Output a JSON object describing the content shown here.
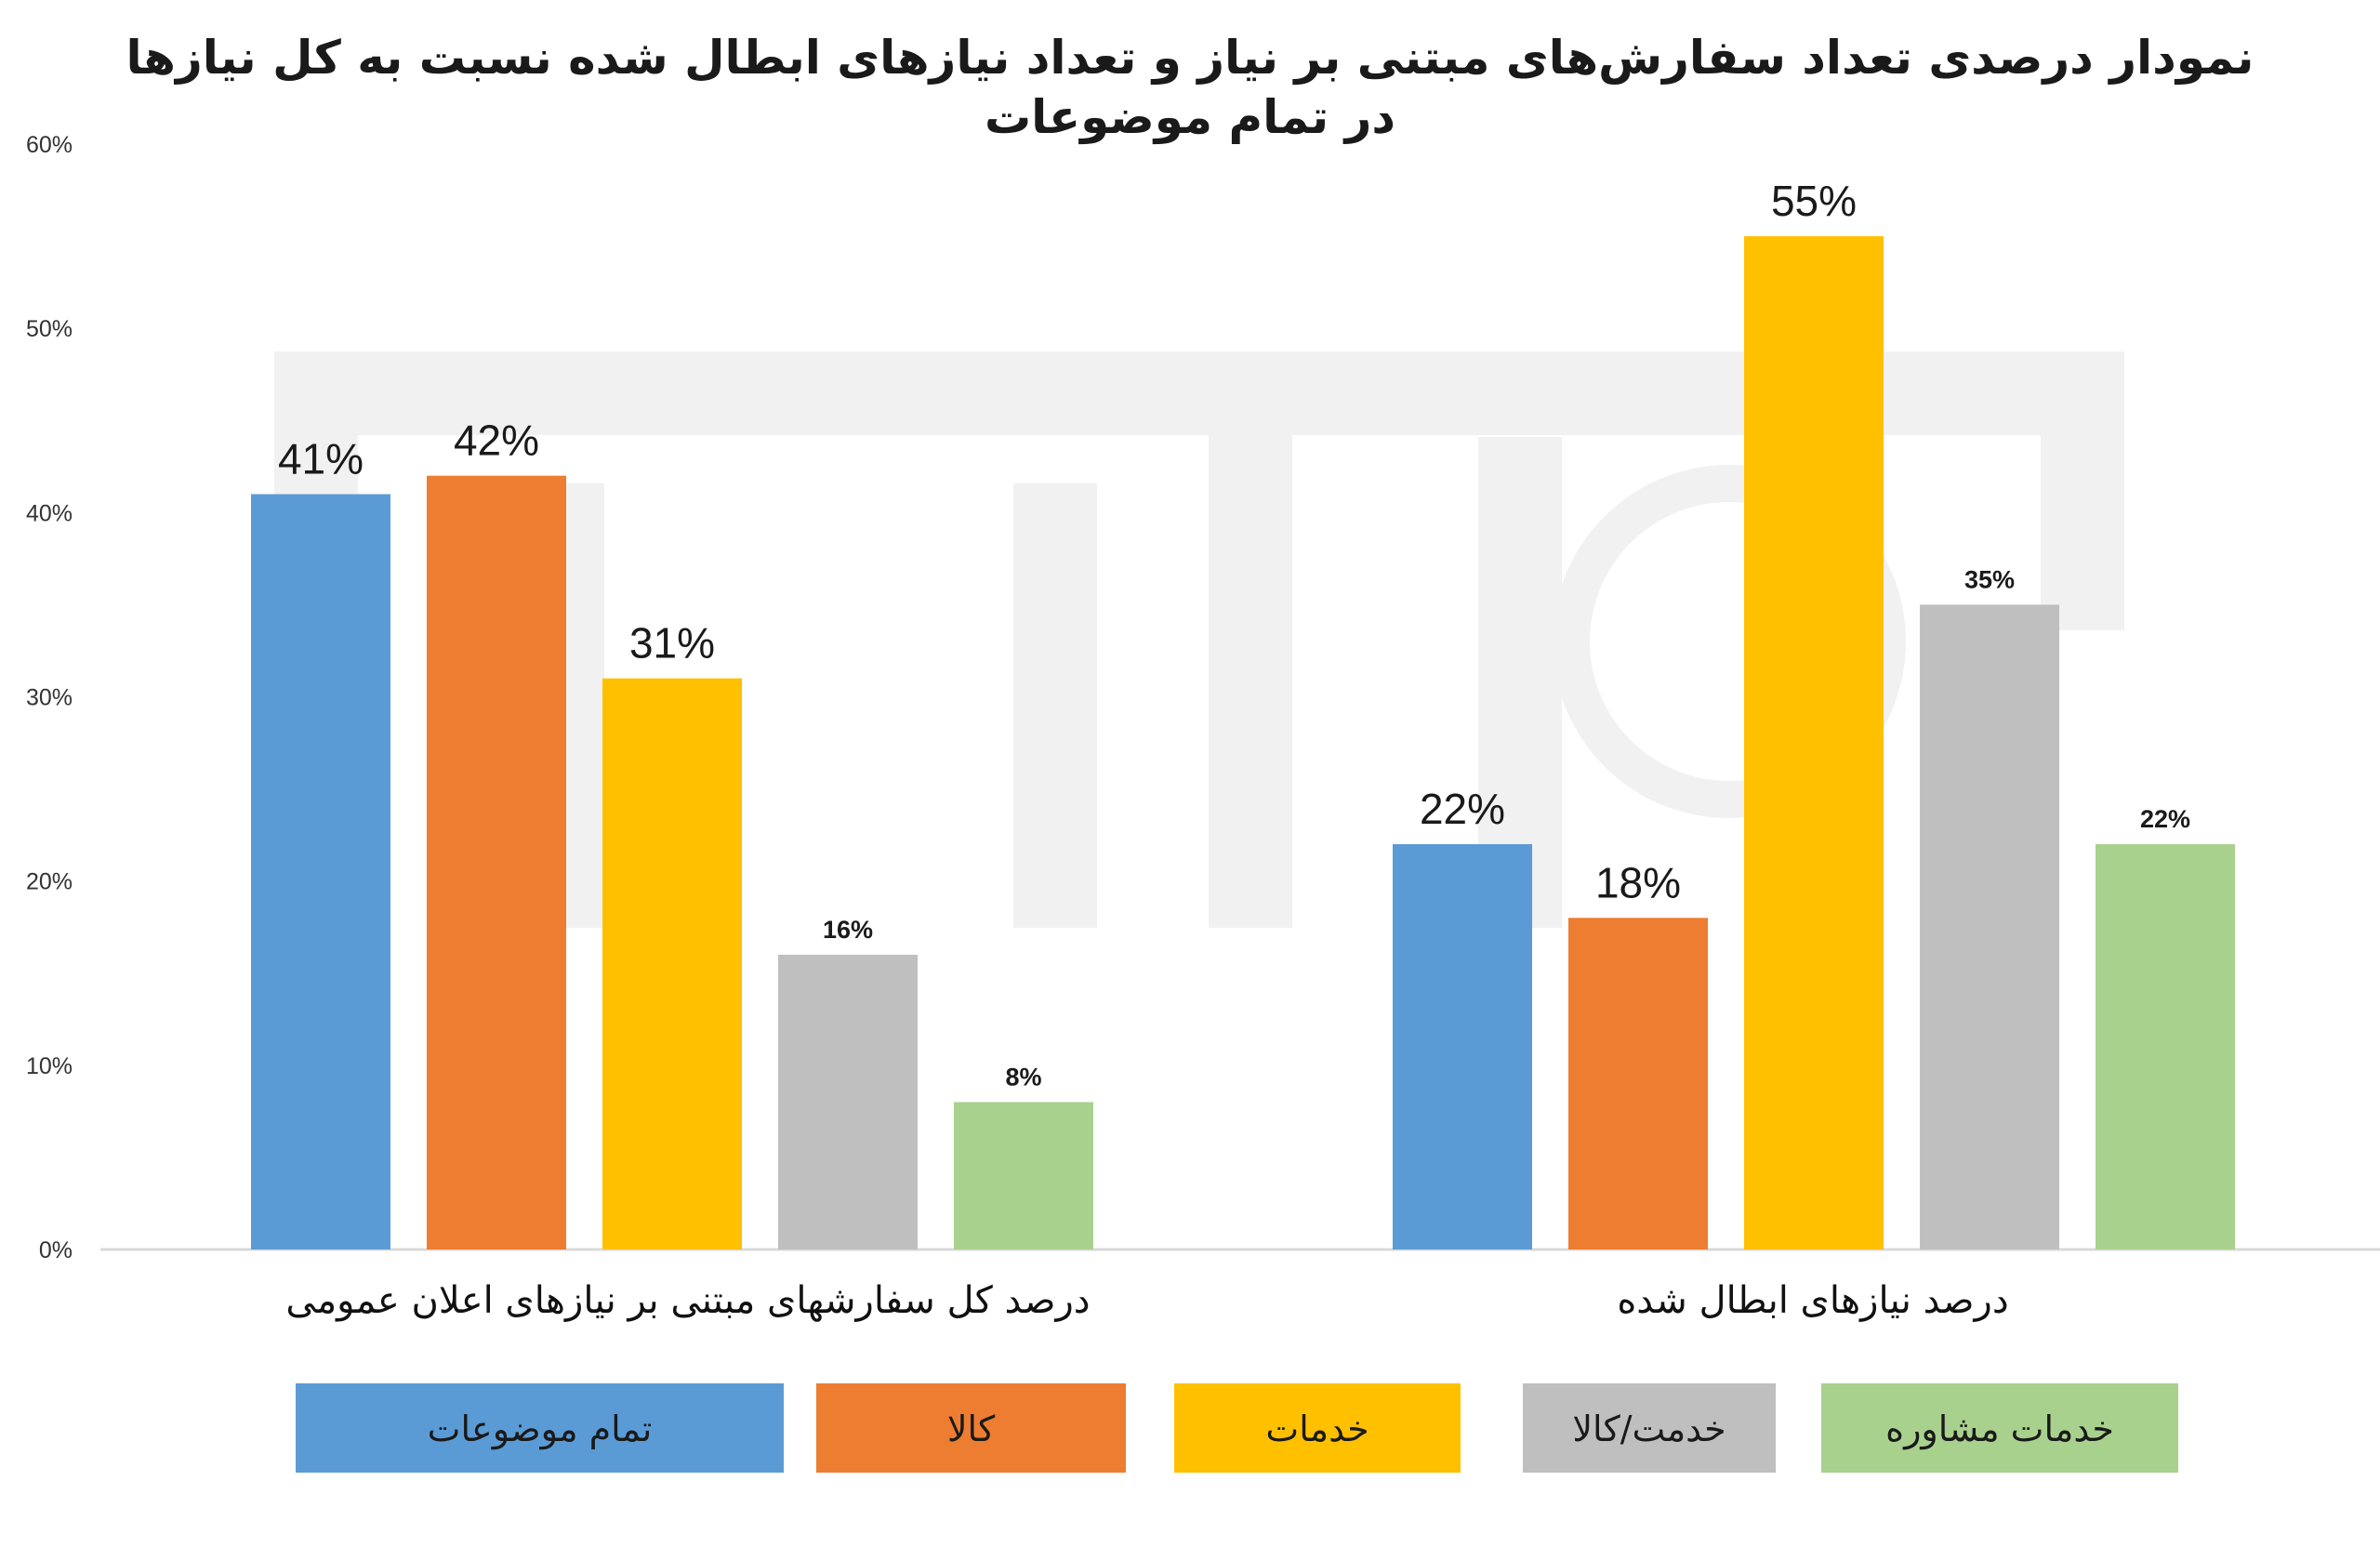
{
  "chart_data": {
    "type": "bar",
    "title": "نمودار درصدی تعداد سفارش‌های مبتنی بر نیاز و تعداد نیازهای ابطال شده نسبت به کل نیازها در تمام موضوعات",
    "categories": [
      "درصد کل سفارشهای مبتنی بر نیازهای اعلان عمومی",
      "درصد نیازهای ابطال شده"
    ],
    "series": [
      {
        "name": "تمام موضوعات",
        "color": "#5B9BD5",
        "values": [
          41,
          22
        ]
      },
      {
        "name": "کالا",
        "color": "#ED7D31",
        "values": [
          42,
          18
        ]
      },
      {
        "name": "خدمات",
        "color": "#FFC000",
        "values": [
          31,
          55
        ]
      },
      {
        "name": "خدمت/کالا",
        "color": "#BFBFBF",
        "values": [
          16,
          35
        ]
      },
      {
        "name": "خدمات مشاوره",
        "color": "#A9D18E",
        "values": [
          8,
          22
        ]
      }
    ],
    "value_labels": [
      [
        "41%",
        "22%"
      ],
      [
        "42%",
        "18%"
      ],
      [
        "31%",
        "55%"
      ],
      [
        "16%",
        "35%"
      ],
      [
        "8%",
        "22%"
      ]
    ],
    "y_ticks": [
      "0%",
      "10%",
      "20%",
      "30%",
      "40%",
      "50%",
      "60%"
    ],
    "ylim": [
      0,
      60
    ],
    "grid": false,
    "legend_position": "bottom"
  }
}
